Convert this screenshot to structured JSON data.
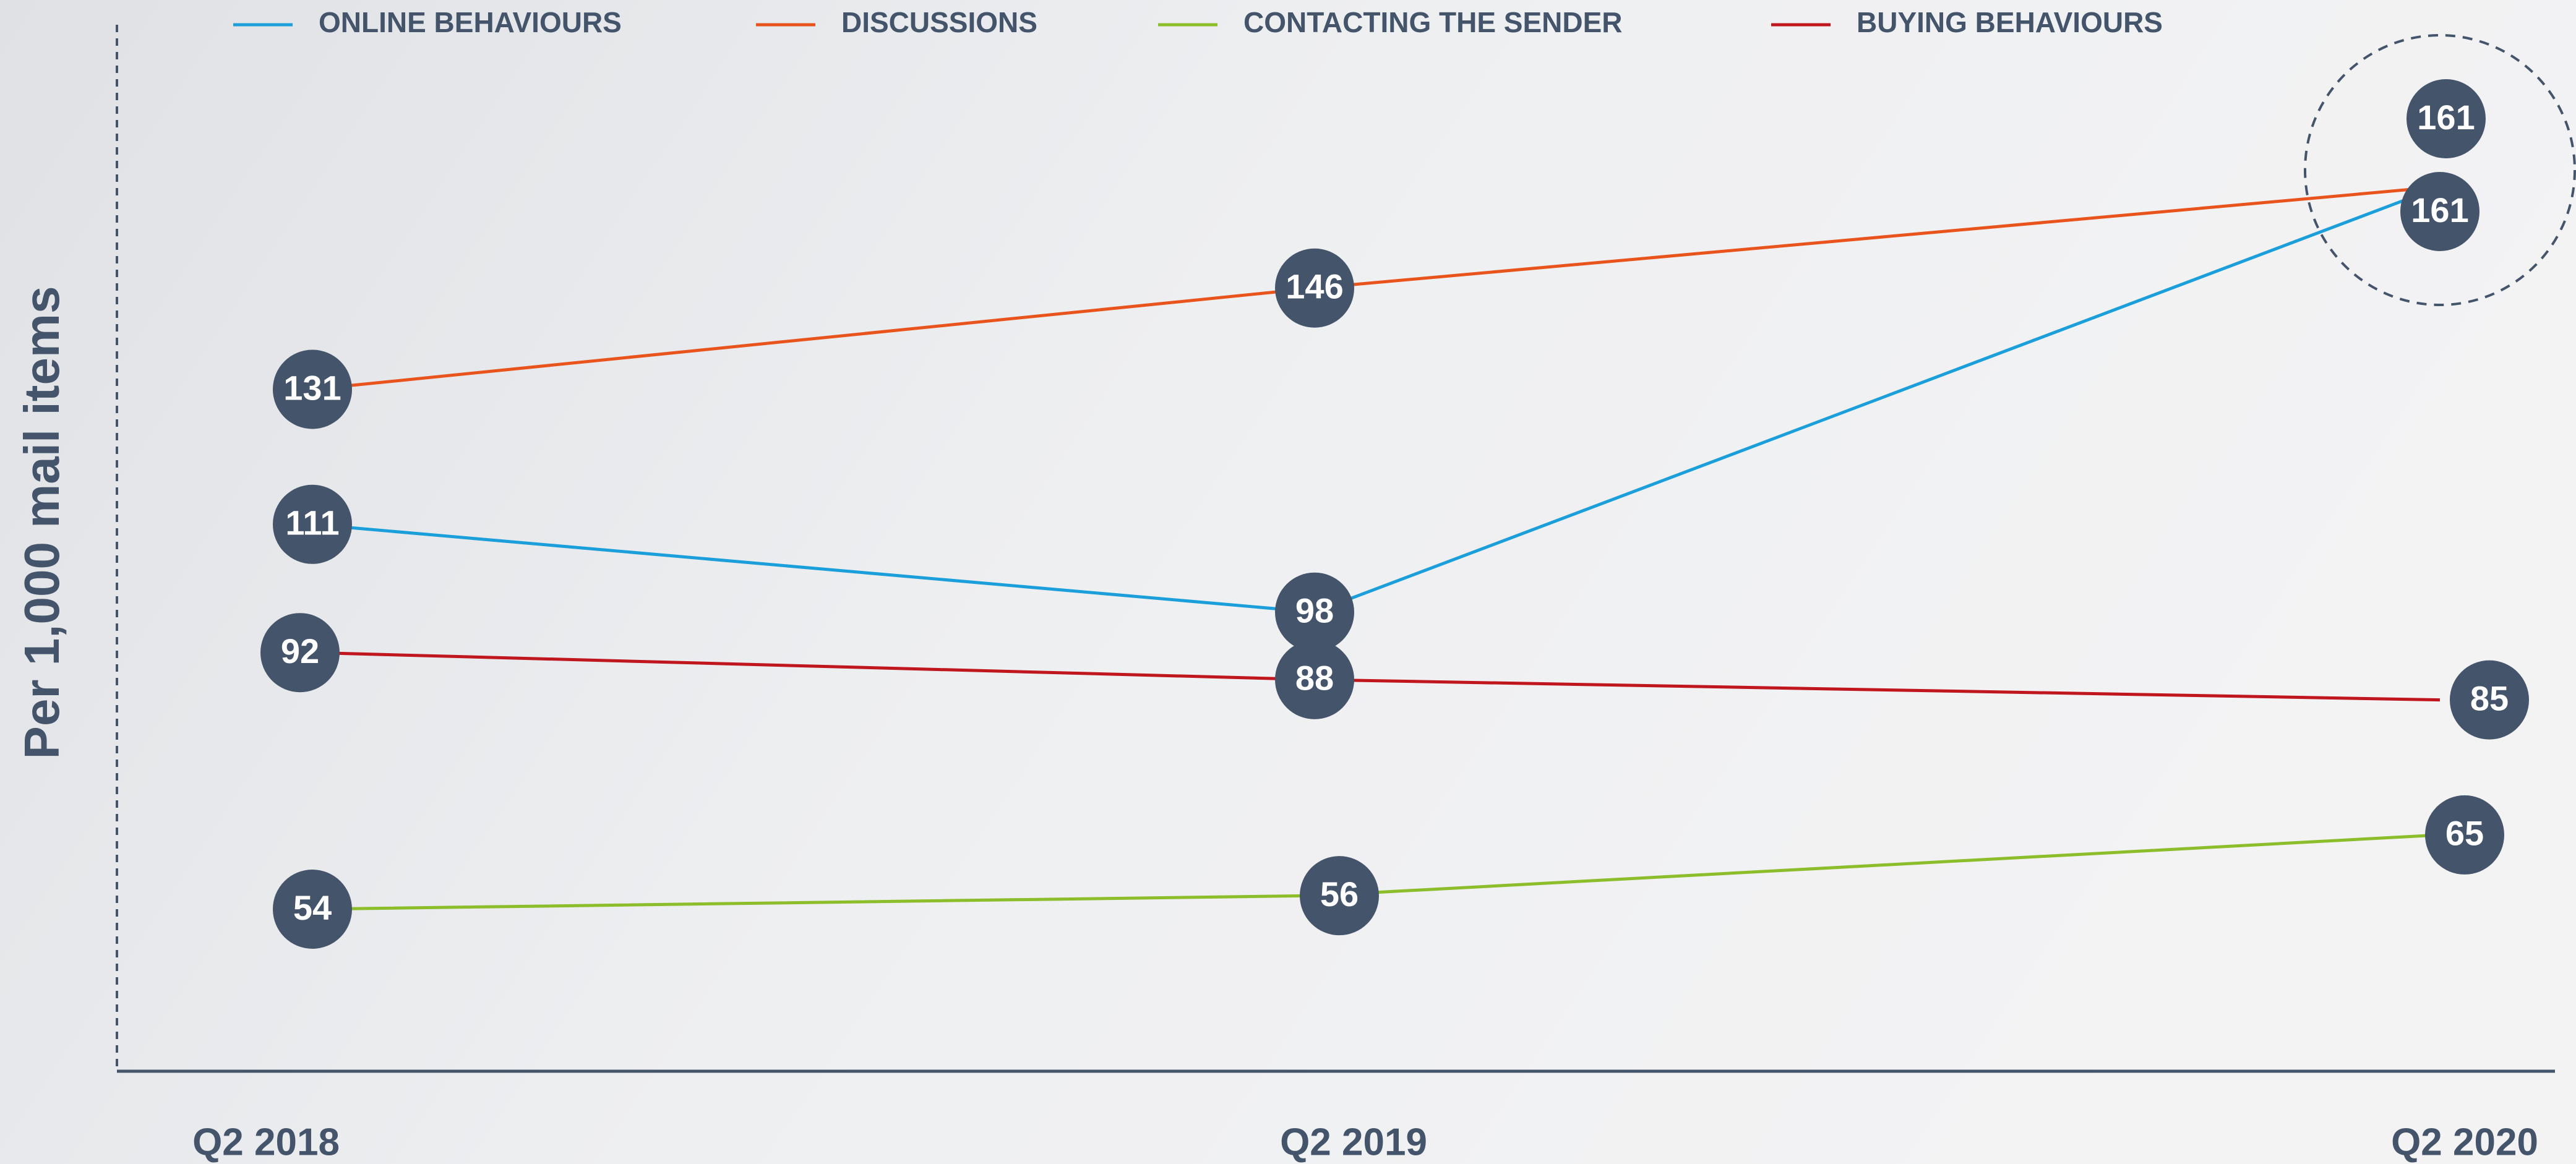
{
  "chart_data": {
    "type": "line",
    "y_label": "Per 1,000 mail items",
    "categories": [
      "Q2 2018",
      "Q2 2019",
      "Q2 2020"
    ],
    "series": [
      {
        "name": "ONLINE BEHAVIOURS",
        "color": "#1a9fdb",
        "values": [
          111,
          98,
          161
        ]
      },
      {
        "name": "DISCUSSIONS",
        "color": "#e8541c",
        "values": [
          131,
          146,
          161
        ]
      },
      {
        "name": "CONTACTING THE SENDER",
        "color": "#8cbd2a",
        "values": [
          54,
          56,
          65
        ]
      },
      {
        "name": "BUYING BEHAVIOURS",
        "color": "#c0161e",
        "values": [
          92,
          88,
          85
        ]
      }
    ],
    "ylim": [
      30,
      185
    ]
  }
}
